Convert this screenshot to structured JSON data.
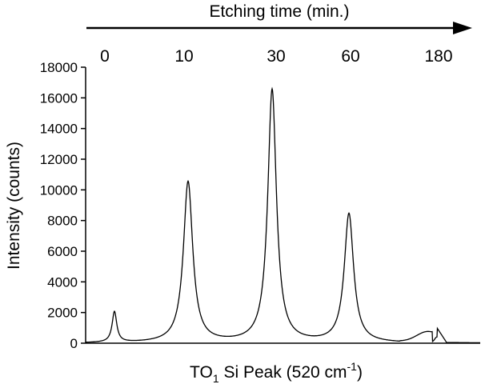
{
  "chart_data": {
    "type": "line",
    "title": "Etching time (min.)",
    "xlabel": {
      "main": "TO",
      "sub": "1",
      "middle": " Si Peak (520 cm",
      "sup": "-1",
      "end": ")"
    },
    "ylabel": "Intensity (counts)",
    "ylim": [
      0,
      18000
    ],
    "yticks": [
      "0",
      "2000",
      "4000",
      "6000",
      "8000",
      "10000",
      "12000",
      "14000",
      "16000",
      "18000"
    ],
    "grid": false,
    "legend": "none",
    "etching_times": [
      "0",
      "10",
      "30",
      "60",
      "180"
    ],
    "series": [
      {
        "peaks": [
          {
            "etching_time": "0",
            "peak_intensity": 2000
          },
          {
            "etching_time": "10",
            "peak_intensity": 10500
          },
          {
            "etching_time": "30",
            "peak_intensity": 16500
          },
          {
            "etching_time": "60",
            "peak_intensity": 8400
          },
          {
            "etching_time": "180",
            "peak_intensity": 1000
          }
        ]
      }
    ],
    "colors": {
      "line": "#000000",
      "axis": "#000000",
      "background": "#ffffff"
    }
  }
}
